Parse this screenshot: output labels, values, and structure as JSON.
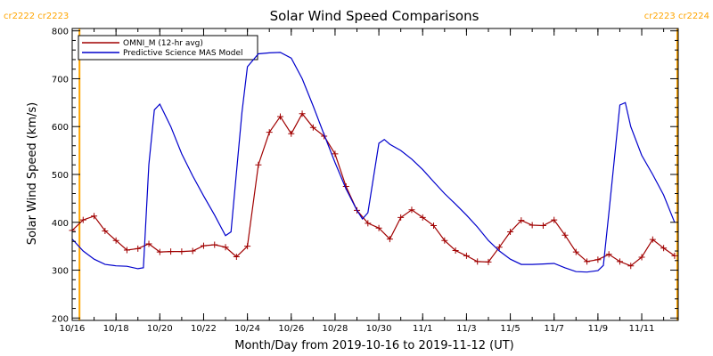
{
  "chart_data": {
    "type": "line",
    "title": "Solar Wind Speed Comparisons",
    "xlabel": "Month/Day from 2019-10-16 to 2019-11-12 (UT)",
    "ylabel": "Solar Wind Speed (km/s)",
    "xlim": [
      "2019-10-16T00:00",
      "2019-11-12T16:00"
    ],
    "ylim": [
      195,
      805
    ],
    "y_ticks": [
      200,
      300,
      400,
      500,
      600,
      700,
      800
    ],
    "x_ticks": [
      {
        "date": "2019-10-16",
        "label": "10/16"
      },
      {
        "date": "2019-10-18",
        "label": "10/18"
      },
      {
        "date": "2019-10-20",
        "label": "10/20"
      },
      {
        "date": "2019-10-22",
        "label": "10/22"
      },
      {
        "date": "2019-10-24",
        "label": "10/24"
      },
      {
        "date": "2019-10-26",
        "label": "10/26"
      },
      {
        "date": "2019-10-28",
        "label": "10/28"
      },
      {
        "date": "2019-10-30",
        "label": "10/30"
      },
      {
        "date": "2019-11-01",
        "label": "11/1"
      },
      {
        "date": "2019-11-03",
        "label": "11/3"
      },
      {
        "date": "2019-11-05",
        "label": "11/5"
      },
      {
        "date": "2019-11-07",
        "label": "11/7"
      },
      {
        "date": "2019-11-09",
        "label": "11/9"
      },
      {
        "date": "2019-11-11",
        "label": "11/11"
      }
    ],
    "carrington_markers": [
      {
        "date": "2019-10-16T08:00",
        "labels": [
          "cr2222",
          "cr2223"
        ],
        "label_side": "left"
      },
      {
        "date": "2019-11-12T15:00",
        "labels": [
          "cr2223",
          "cr2224"
        ],
        "label_side": "right"
      }
    ],
    "marker_color": "#ffa500",
    "legend_placement": "top-left",
    "series": [
      {
        "name": "OMNI_M (12-hr avg)",
        "color": "#a00000",
        "marker": "plus",
        "points": [
          [
            "2019-10-16T00:00",
            383
          ],
          [
            "2019-10-16T12:00",
            405
          ],
          [
            "2019-10-17T00:00",
            413
          ],
          [
            "2019-10-17T12:00",
            382
          ],
          [
            "2019-10-18T00:00",
            362
          ],
          [
            "2019-10-18T12:00",
            342
          ],
          [
            "2019-10-19T00:00",
            345
          ],
          [
            "2019-10-19T12:00",
            355
          ],
          [
            "2019-10-20T00:00",
            338
          ],
          [
            "2019-10-20T12:00",
            339
          ],
          [
            "2019-10-21T00:00",
            339
          ],
          [
            "2019-10-21T12:00",
            340
          ],
          [
            "2019-10-22T00:00",
            351
          ],
          [
            "2019-10-22T12:00",
            353
          ],
          [
            "2019-10-23T00:00",
            348
          ],
          [
            "2019-10-23T12:00",
            328
          ],
          [
            "2019-10-24T00:00",
            350
          ],
          [
            "2019-10-24T12:00",
            520
          ],
          [
            "2019-10-25T00:00",
            588
          ],
          [
            "2019-10-25T12:00",
            621
          ],
          [
            "2019-10-26T00:00",
            585
          ],
          [
            "2019-10-26T12:00",
            627
          ],
          [
            "2019-10-27T00:00",
            598
          ],
          [
            "2019-10-27T12:00",
            580
          ],
          [
            "2019-10-28T00:00",
            543
          ],
          [
            "2019-10-28T12:00",
            475
          ],
          [
            "2019-10-29T00:00",
            425
          ],
          [
            "2019-10-29T12:00",
            398
          ],
          [
            "2019-10-30T00:00",
            388
          ],
          [
            "2019-10-30T12:00",
            365
          ],
          [
            "2019-10-31T00:00",
            410
          ],
          [
            "2019-10-31T12:00",
            426
          ],
          [
            "2019-11-01T00:00",
            410
          ],
          [
            "2019-11-01T12:00",
            393
          ],
          [
            "2019-11-02T00:00",
            362
          ],
          [
            "2019-11-02T12:00",
            341
          ],
          [
            "2019-11-03T00:00",
            330
          ],
          [
            "2019-11-03T12:00",
            318
          ],
          [
            "2019-11-04T00:00",
            317
          ],
          [
            "2019-11-04T12:00",
            348
          ],
          [
            "2019-11-05T00:00",
            380
          ],
          [
            "2019-11-05T12:00",
            404
          ],
          [
            "2019-11-06T00:00",
            394
          ],
          [
            "2019-11-06T12:00",
            393
          ],
          [
            "2019-11-07T00:00",
            405
          ],
          [
            "2019-11-07T12:00",
            373
          ],
          [
            "2019-11-08T00:00",
            338
          ],
          [
            "2019-11-08T12:00",
            318
          ],
          [
            "2019-11-09T00:00",
            322
          ],
          [
            "2019-11-09T12:00",
            333
          ],
          [
            "2019-11-10T00:00",
            318
          ],
          [
            "2019-11-10T12:00",
            309
          ],
          [
            "2019-11-11T00:00",
            327
          ],
          [
            "2019-11-11T12:00",
            364
          ],
          [
            "2019-11-12T00:00",
            346
          ],
          [
            "2019-11-12T12:00",
            330
          ]
        ]
      },
      {
        "name": "Predictive Science MAS Model",
        "color": "#0000cc",
        "marker": "none",
        "points": [
          [
            "2019-10-16T00:00",
            365
          ],
          [
            "2019-10-16T12:00",
            340
          ],
          [
            "2019-10-17T00:00",
            323
          ],
          [
            "2019-10-17T12:00",
            312
          ],
          [
            "2019-10-18T00:00",
            309
          ],
          [
            "2019-10-18T12:00",
            308
          ],
          [
            "2019-10-19T00:00",
            303
          ],
          [
            "2019-10-19T06:00",
            305
          ],
          [
            "2019-10-19T12:00",
            520
          ],
          [
            "2019-10-19T18:00",
            635
          ],
          [
            "2019-10-20T00:00",
            647
          ],
          [
            "2019-10-20T12:00",
            600
          ],
          [
            "2019-10-21T00:00",
            543
          ],
          [
            "2019-10-21T12:00",
            497
          ],
          [
            "2019-10-22T00:00",
            455
          ],
          [
            "2019-10-22T12:00",
            415
          ],
          [
            "2019-10-23T00:00",
            372
          ],
          [
            "2019-10-23T06:00",
            380
          ],
          [
            "2019-10-23T18:00",
            630
          ],
          [
            "2019-10-24T00:00",
            725
          ],
          [
            "2019-10-24T12:00",
            752
          ],
          [
            "2019-10-25T00:00",
            754
          ],
          [
            "2019-10-25T12:00",
            755
          ],
          [
            "2019-10-26T00:00",
            743
          ],
          [
            "2019-10-26T12:00",
            700
          ],
          [
            "2019-10-27T00:00",
            643
          ],
          [
            "2019-10-27T12:00",
            583
          ],
          [
            "2019-10-28T00:00",
            525
          ],
          [
            "2019-10-28T12:00",
            470
          ],
          [
            "2019-10-29T00:00",
            425
          ],
          [
            "2019-10-29T06:00",
            407
          ],
          [
            "2019-10-29T12:00",
            420
          ],
          [
            "2019-10-30T00:00",
            565
          ],
          [
            "2019-10-30T06:00",
            573
          ],
          [
            "2019-10-30T12:00",
            563
          ],
          [
            "2019-10-31T00:00",
            550
          ],
          [
            "2019-10-31T12:00",
            532
          ],
          [
            "2019-11-01T00:00",
            510
          ],
          [
            "2019-11-01T12:00",
            485
          ],
          [
            "2019-11-02T00:00",
            460
          ],
          [
            "2019-11-02T12:00",
            438
          ],
          [
            "2019-11-03T00:00",
            415
          ],
          [
            "2019-11-03T12:00",
            390
          ],
          [
            "2019-11-04T00:00",
            362
          ],
          [
            "2019-11-04T12:00",
            340
          ],
          [
            "2019-11-05T00:00",
            323
          ],
          [
            "2019-11-05T12:00",
            312
          ],
          [
            "2019-11-06T00:00",
            312
          ],
          [
            "2019-11-06T12:00",
            313
          ],
          [
            "2019-11-07T00:00",
            314
          ],
          [
            "2019-11-07T12:00",
            305
          ],
          [
            "2019-11-08T00:00",
            297
          ],
          [
            "2019-11-08T12:00",
            296
          ],
          [
            "2019-11-09T00:00",
            299
          ],
          [
            "2019-11-09T06:00",
            310
          ],
          [
            "2019-11-09T12:00",
            420
          ],
          [
            "2019-11-10T00:00",
            645
          ],
          [
            "2019-11-10T06:00",
            650
          ],
          [
            "2019-11-10T12:00",
            600
          ],
          [
            "2019-11-11T00:00",
            540
          ],
          [
            "2019-11-11T12:00",
            500
          ],
          [
            "2019-11-12T00:00",
            457
          ],
          [
            "2019-11-12T12:00",
            400
          ]
        ]
      }
    ]
  }
}
